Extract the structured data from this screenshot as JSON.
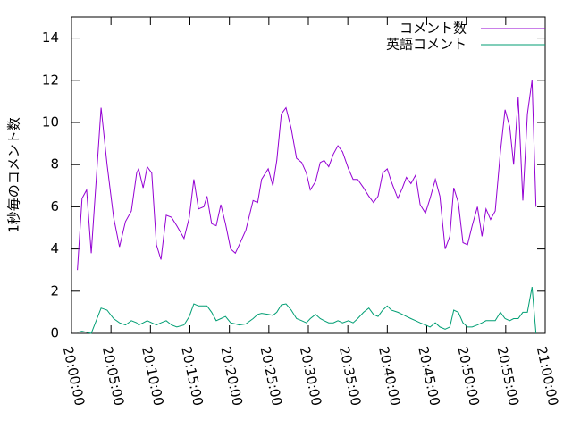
{
  "chart_data": {
    "type": "line",
    "y_label": "1秒毎のコメント数",
    "x": [
      "20:00:45",
      "20:01:20",
      "20:01:55",
      "20:02:30",
      "20:03:45",
      "20:04:30",
      "20:05:20",
      "20:06:05",
      "20:06:50",
      "20:07:35",
      "20:08:15",
      "20:08:30",
      "20:09:05",
      "20:09:35",
      "20:10:10",
      "20:10:45",
      "20:11:20",
      "20:12:00",
      "20:12:40",
      "20:13:20",
      "20:14:15",
      "20:14:55",
      "20:15:30",
      "20:16:05",
      "20:16:45",
      "20:17:10",
      "20:17:45",
      "20:18:20",
      "20:18:55",
      "20:19:30",
      "20:20:10",
      "20:20:45",
      "20:21:15",
      "20:22:05",
      "20:23:00",
      "20:23:35",
      "20:24:05",
      "20:24:55",
      "20:25:30",
      "20:26:00",
      "20:26:35",
      "20:27:10",
      "20:27:50",
      "20:28:30",
      "20:29:10",
      "20:29:45",
      "20:30:15",
      "20:30:55",
      "20:31:30",
      "20:32:00",
      "20:32:35",
      "20:33:10",
      "20:33:45",
      "20:34:20",
      "20:35:05",
      "20:35:40",
      "20:36:15",
      "20:37:00",
      "20:37:40",
      "20:38:15",
      "20:38:50",
      "20:39:25",
      "20:40:00",
      "20:40:30",
      "20:41:20",
      "20:41:55",
      "20:42:25",
      "20:43:00",
      "20:43:35",
      "20:44:10",
      "20:44:50",
      "20:45:25",
      "20:46:05",
      "20:46:40",
      "20:47:20",
      "20:47:55",
      "20:48:25",
      "20:49:00",
      "20:49:35",
      "20:50:10",
      "20:50:45",
      "20:51:25",
      "20:52:00",
      "20:52:30",
      "20:53:05",
      "20:53:40",
      "20:54:20",
      "20:54:55",
      "20:55:30",
      "20:56:00",
      "20:56:35",
      "20:57:10",
      "20:57:45",
      "20:58:20",
      "20:58:50"
    ],
    "series": [
      {
        "name": "コメント数",
        "color": "#9400d3",
        "values": [
          3.0,
          6.4,
          6.8,
          3.8,
          10.7,
          8.0,
          5.5,
          4.1,
          5.3,
          5.8,
          7.6,
          7.8,
          6.9,
          7.9,
          7.6,
          4.2,
          3.5,
          5.6,
          5.5,
          5.1,
          4.5,
          5.5,
          7.3,
          5.9,
          6.0,
          6.5,
          5.2,
          5.1,
          6.1,
          5.2,
          4.0,
          3.8,
          4.2,
          4.9,
          6.3,
          6.2,
          7.3,
          7.8,
          7.0,
          8.2,
          10.4,
          10.7,
          9.7,
          8.3,
          8.1,
          7.6,
          6.8,
          7.2,
          8.1,
          8.2,
          7.9,
          8.5,
          8.9,
          8.6,
          7.8,
          7.3,
          7.3,
          6.9,
          6.5,
          6.2,
          6.5,
          7.6,
          7.8,
          7.2,
          6.4,
          6.9,
          7.4,
          7.1,
          7.5,
          6.1,
          5.7,
          6.4,
          7.3,
          6.5,
          4.0,
          4.6,
          6.9,
          6.2,
          4.3,
          4.2,
          5.1,
          6.0,
          4.6,
          5.9,
          5.4,
          5.8,
          8.6,
          10.6,
          9.8,
          8.0,
          11.2,
          6.3,
          10.4,
          12.0,
          6.0
        ]
      },
      {
        "name": "英語コメント",
        "color": "#009e73",
        "values": [
          0.05,
          0.1,
          0.05,
          0.0,
          1.2,
          1.1,
          0.7,
          0.5,
          0.4,
          0.6,
          0.5,
          0.4,
          0.5,
          0.6,
          0.5,
          0.4,
          0.5,
          0.6,
          0.4,
          0.3,
          0.4,
          0.8,
          1.4,
          1.3,
          1.3,
          1.3,
          1.0,
          0.6,
          0.7,
          0.8,
          0.5,
          0.45,
          0.4,
          0.45,
          0.7,
          0.9,
          0.95,
          0.9,
          0.85,
          1.0,
          1.35,
          1.4,
          1.1,
          0.7,
          0.6,
          0.5,
          0.7,
          0.9,
          0.7,
          0.6,
          0.5,
          0.5,
          0.6,
          0.5,
          0.6,
          0.5,
          0.7,
          1.0,
          1.2,
          0.9,
          0.8,
          1.1,
          1.3,
          1.1,
          1.0,
          0.9,
          0.8,
          0.7,
          0.6,
          0.5,
          0.4,
          0.3,
          0.5,
          0.3,
          0.2,
          0.3,
          1.1,
          1.0,
          0.5,
          0.3,
          0.3,
          0.4,
          0.5,
          0.6,
          0.6,
          0.6,
          1.0,
          0.7,
          0.6,
          0.7,
          0.7,
          1.0,
          1.0,
          2.2,
          0.0
        ]
      }
    ],
    "xlim": [
      "20:00:00",
      "21:00:00"
    ],
    "xticks": [
      "20:00:00",
      "20:05:00",
      "20:10:00",
      "20:15:00",
      "20:20:00",
      "20:25:00",
      "20:30:00",
      "20:35:00",
      "20:40:00",
      "20:45:00",
      "20:50:00",
      "20:55:00",
      "21:00:00"
    ],
    "ylim": [
      0,
      15
    ],
    "yticks": [
      0,
      2,
      4,
      6,
      8,
      10,
      12,
      14
    ],
    "legend": "top-right"
  }
}
